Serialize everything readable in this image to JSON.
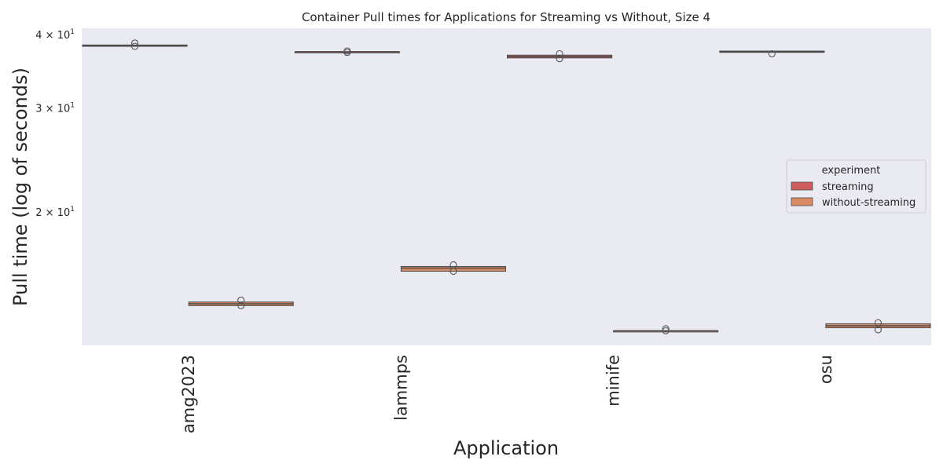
{
  "chart_data": {
    "type": "box",
    "title": "Container Pull times for Applications for Streaming vs Without, Size 4",
    "xlabel": "Application",
    "ylabel": "Pull time (log of seconds)",
    "y_scale": "log",
    "ylim": [
      11.9,
      41.1
    ],
    "y_ticks": [
      {
        "value": 20,
        "base": "2 × 10",
        "exp": "1"
      },
      {
        "value": 30,
        "base": "3 × 10",
        "exp": "1"
      },
      {
        "value": 40,
        "base": "4 × 10",
        "exp": "1"
      }
    ],
    "categories": [
      "amg2023",
      "lammps",
      "minife",
      "osu"
    ],
    "grid": false,
    "background": "#eaeaf2",
    "legend": {
      "title": "experiment",
      "placement": "center-right"
    },
    "series": [
      {
        "name": "streaming",
        "color": "#cd5c5c",
        "boxes": [
          {
            "q1": 38.3,
            "median": 38.4,
            "q3": 38.5,
            "outliers": [
              38.8,
              38.3
            ]
          },
          {
            "q1": 37.4,
            "median": 37.5,
            "q3": 37.5,
            "outliers": [
              37.6,
              37.4
            ]
          },
          {
            "q1": 36.6,
            "median": 36.8,
            "q3": 37.0,
            "outliers": [
              37.2,
              36.5
            ]
          },
          {
            "q1": 37.4,
            "median": 37.5,
            "q3": 37.6,
            "outliers": [
              37.2
            ]
          }
        ]
      },
      {
        "name": "without-streaming",
        "color": "#d98a63",
        "boxes": [
          {
            "q1": 13.9,
            "median": 14.0,
            "q3": 14.1,
            "outliers": [
              14.2,
              13.9
            ]
          },
          {
            "q1": 15.9,
            "median": 16.1,
            "q3": 16.2,
            "outliers": [
              16.3,
              15.9
            ]
          },
          {
            "q1": 12.6,
            "median": 12.6,
            "q3": 12.6,
            "outliers": [
              12.7,
              12.6
            ]
          },
          {
            "q1": 12.75,
            "median": 12.85,
            "q3": 12.95,
            "outliers": [
              13.0,
              12.65
            ]
          }
        ]
      }
    ]
  }
}
